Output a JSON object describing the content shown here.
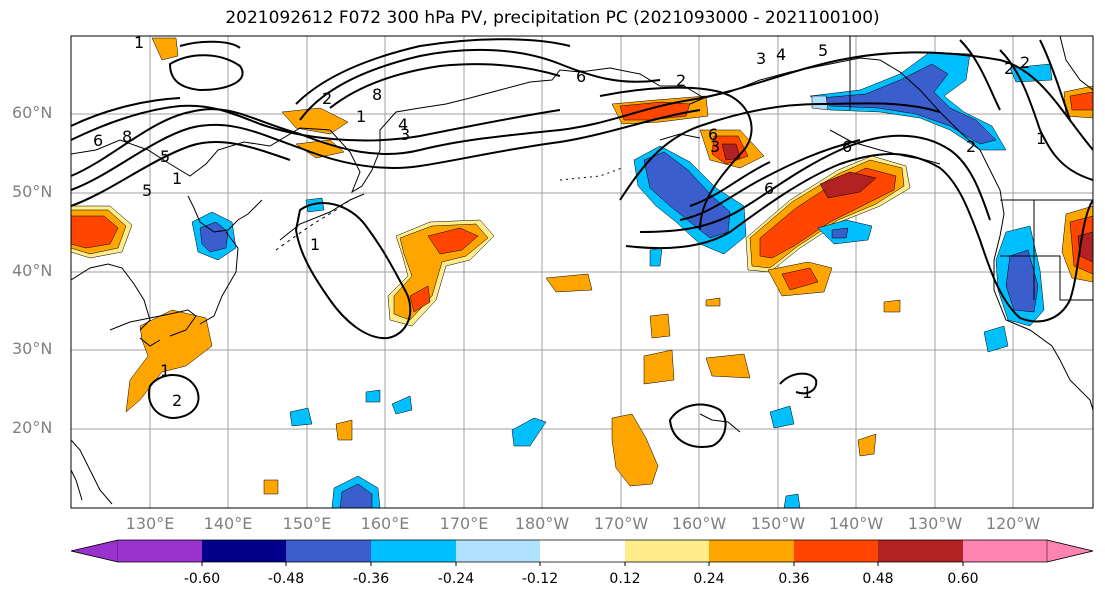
{
  "title": "2021092612 F072 300 hPa PV, precipitation PC (2021093000 - 2021100100)",
  "lat_labels": [
    "60°N",
    "50°N",
    "40°N",
    "30°N",
    "20°N"
  ],
  "lon_labels": [
    "130°E",
    "140°E",
    "150°E",
    "160°E",
    "170°E",
    "180°W",
    "170°W",
    "160°W",
    "150°W",
    "140°W",
    "130°W",
    "120°W"
  ],
  "colorbar": {
    "colors": [
      "#9932cc",
      "#00008b",
      "#3a5fcd",
      "#00bfff",
      "#b0e2ff",
      "#ffffff",
      "#ffec8b",
      "#ffa500",
      "#ff4500",
      "#b22222",
      "#ff83b0"
    ],
    "tick_labels": [
      "-0.60",
      "-0.48",
      "-0.36",
      "-0.24",
      "-0.12",
      "0.12",
      "0.24",
      "0.36",
      "0.48",
      "0.60"
    ]
  },
  "contour_labels": [
    "1",
    "6",
    "8",
    "5",
    "5",
    "1",
    "2",
    "1",
    "4",
    "3",
    "8",
    "6",
    "2",
    "3",
    "6",
    "3",
    "4",
    "5",
    "6",
    "6",
    "1",
    "2",
    "1",
    "2",
    "1",
    "2",
    "1",
    "2"
  ],
  "colors": {
    "land_outline": "#000000",
    "grid": "#a0a0a0",
    "contour": "#000000",
    "axis_label": "#808080"
  }
}
